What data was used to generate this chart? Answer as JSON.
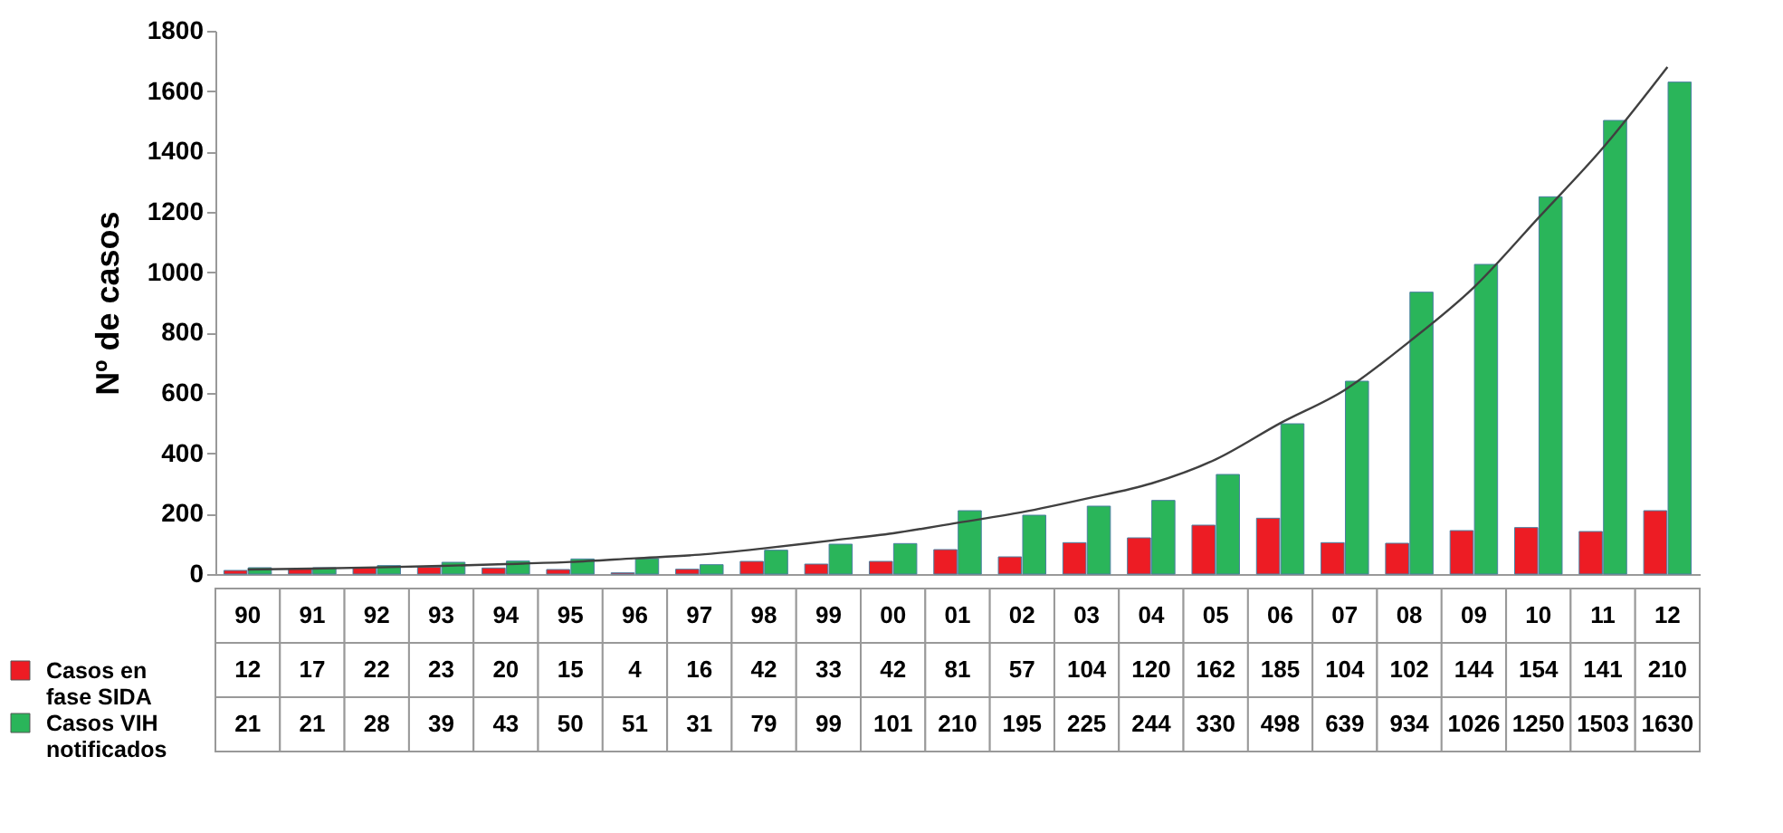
{
  "chart_data": {
    "type": "bar",
    "ylabel": "Nº de casos",
    "categories": [
      "90",
      "91",
      "92",
      "93",
      "94",
      "95",
      "96",
      "97",
      "98",
      "99",
      "00",
      "01",
      "02",
      "03",
      "04",
      "05",
      "06",
      "07",
      "08",
      "09",
      "10",
      "11",
      "12"
    ],
    "series": [
      {
        "name": "Casos en fase SIDA",
        "color": "#ed1c24",
        "values": [
          12,
          17,
          22,
          23,
          20,
          15,
          4,
          16,
          42,
          33,
          42,
          81,
          57,
          104,
          120,
          162,
          185,
          104,
          102,
          144,
          154,
          141,
          210
        ],
        "value_labels": [
          "12",
          "17",
          "22",
          "23",
          "20",
          "15",
          "4",
          "16",
          "42",
          "33",
          "42",
          "81",
          "57",
          "104",
          "120",
          "162",
          "185",
          "104",
          "102",
          "144",
          "154",
          "141",
          "210"
        ]
      },
      {
        "name": "Casos VIH notificados",
        "color": "#2ab55a",
        "values": [
          21,
          21,
          28,
          39,
          43,
          50,
          51,
          31,
          79,
          99,
          101,
          210,
          195,
          225,
          244,
          330,
          498,
          639,
          934,
          1026,
          1250,
          1503,
          1630
        ],
        "value_labels": [
          "21",
          "21",
          "28",
          "39",
          "43",
          "50",
          "51",
          "31",
          "79",
          "99",
          "101",
          "210",
          "195",
          "225",
          "244",
          "330",
          "498",
          "639",
          "934",
          "1026",
          "1250",
          "1503",
          "1630"
        ]
      },
      {
        "type": "line",
        "color": "#404040",
        "values": [
          15,
          18,
          22,
          27,
          33,
          40,
          52,
          64,
          85,
          110,
          135,
          170,
          205,
          250,
          300,
          380,
          500,
          610,
          770,
          950,
          1180,
          1412,
          1680
        ]
      }
    ],
    "ylim": [
      0,
      1800
    ],
    "yticks": [
      0,
      200,
      400,
      600,
      800,
      1000,
      1200,
      1400,
      1600,
      1800
    ],
    "grid": false,
    "legend": "bottom left"
  }
}
